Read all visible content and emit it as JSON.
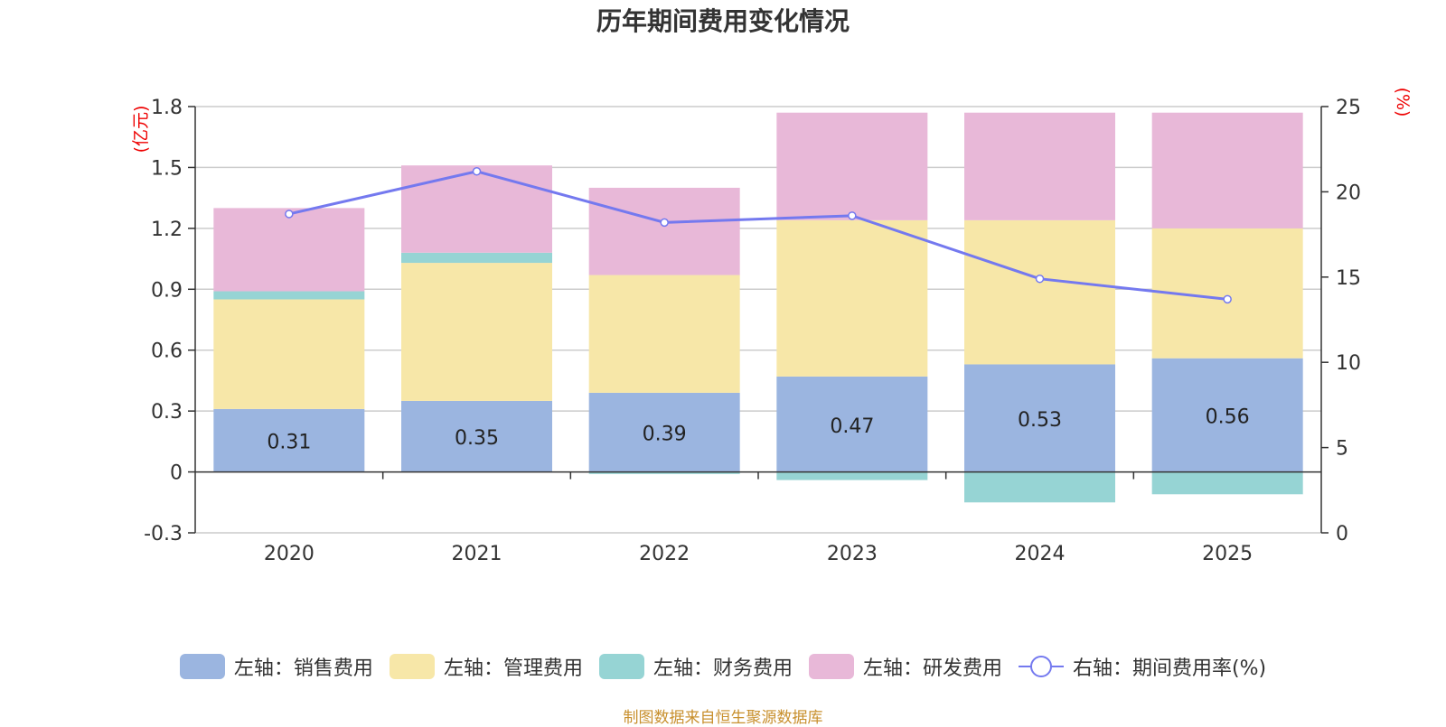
{
  "chart_data": {
    "type": "bar",
    "title": "历年期间费用变化情况",
    "categories": [
      "2020",
      "2021",
      "2022",
      "2023",
      "2024",
      "2025"
    ],
    "left_axis": {
      "unit_label": "(亿元)",
      "ylim": [
        -0.3,
        1.8
      ],
      "ticks": [
        "1.8",
        "1.5",
        "1.2",
        "0.9",
        "0.6",
        "0.3",
        "0",
        "-0.3"
      ]
    },
    "right_axis": {
      "unit_label": "(%)",
      "ylim": [
        0,
        25
      ],
      "ticks": [
        "25",
        "20",
        "15",
        "10",
        "5",
        "0"
      ]
    },
    "series": [
      {
        "name": "左轴：销售费用",
        "type": "bar",
        "stacked": true,
        "color": "#9bb5e0",
        "values": [
          0.31,
          0.35,
          0.39,
          0.47,
          0.53,
          0.56
        ],
        "labels": [
          "0.31",
          "0.35",
          "0.39",
          "0.47",
          "0.53",
          "0.56"
        ]
      },
      {
        "name": "左轴：管理费用",
        "type": "bar",
        "stacked": true,
        "color": "#f7e7a8",
        "values": [
          0.54,
          0.68,
          0.58,
          0.77,
          0.71,
          0.64
        ]
      },
      {
        "name": "左轴：财务费用",
        "type": "bar",
        "stacked": true,
        "color": "#96d4d4",
        "values": [
          0.04,
          0.05,
          -0.01,
          -0.04,
          -0.15,
          -0.11
        ]
      },
      {
        "name": "左轴：研发费用",
        "type": "bar",
        "stacked": true,
        "color": "#e8b8d8",
        "values": [
          0.41,
          0.43,
          0.43,
          0.53,
          0.53,
          0.57
        ]
      },
      {
        "name": "右轴：期间费用率(%)",
        "type": "line",
        "axis": "right",
        "color": "#7479ef",
        "values": [
          18.7,
          21.2,
          18.2,
          18.6,
          14.9,
          13.7
        ]
      }
    ]
  },
  "source": "制图数据来自恒生聚源数据库"
}
